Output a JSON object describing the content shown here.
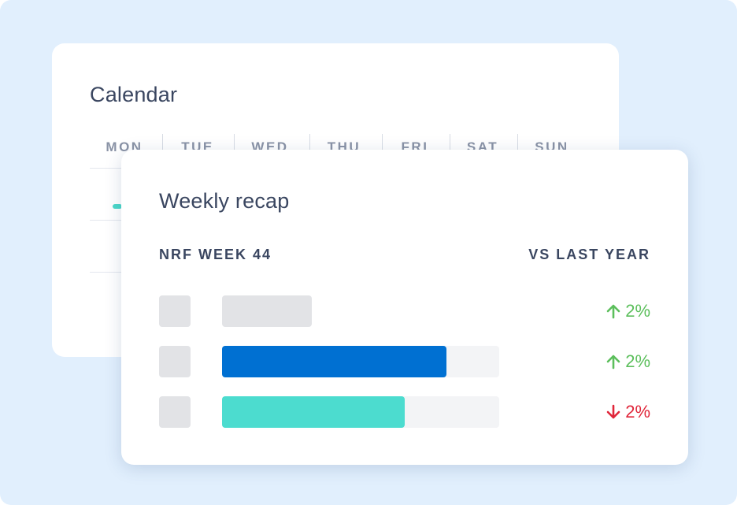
{
  "calendar": {
    "title": "Calendar",
    "days": [
      "MON",
      "TUE",
      "WED",
      "THU",
      "FRI",
      "SAT",
      "SUN"
    ]
  },
  "recap": {
    "title": "Weekly recap",
    "left_column_label": "NRF WEEK 44",
    "right_column_label": "VS LAST YEAR",
    "rows": [
      {
        "fill_fraction": 1.0,
        "has_track": false,
        "fill_color": "#e2e3e6",
        "change": "2%",
        "direction": "up"
      },
      {
        "fill_fraction": 0.81,
        "has_track": true,
        "fill_color": "#0070d2",
        "change": "2%",
        "direction": "up"
      },
      {
        "fill_fraction": 0.66,
        "has_track": true,
        "fill_color": "#4cdccf",
        "change": "2%",
        "direction": "down"
      }
    ]
  },
  "colors": {
    "up": "#5cbf5c",
    "down": "#e0263a",
    "background": "#e1effd",
    "calendar_accent": "#4cd8c9"
  }
}
